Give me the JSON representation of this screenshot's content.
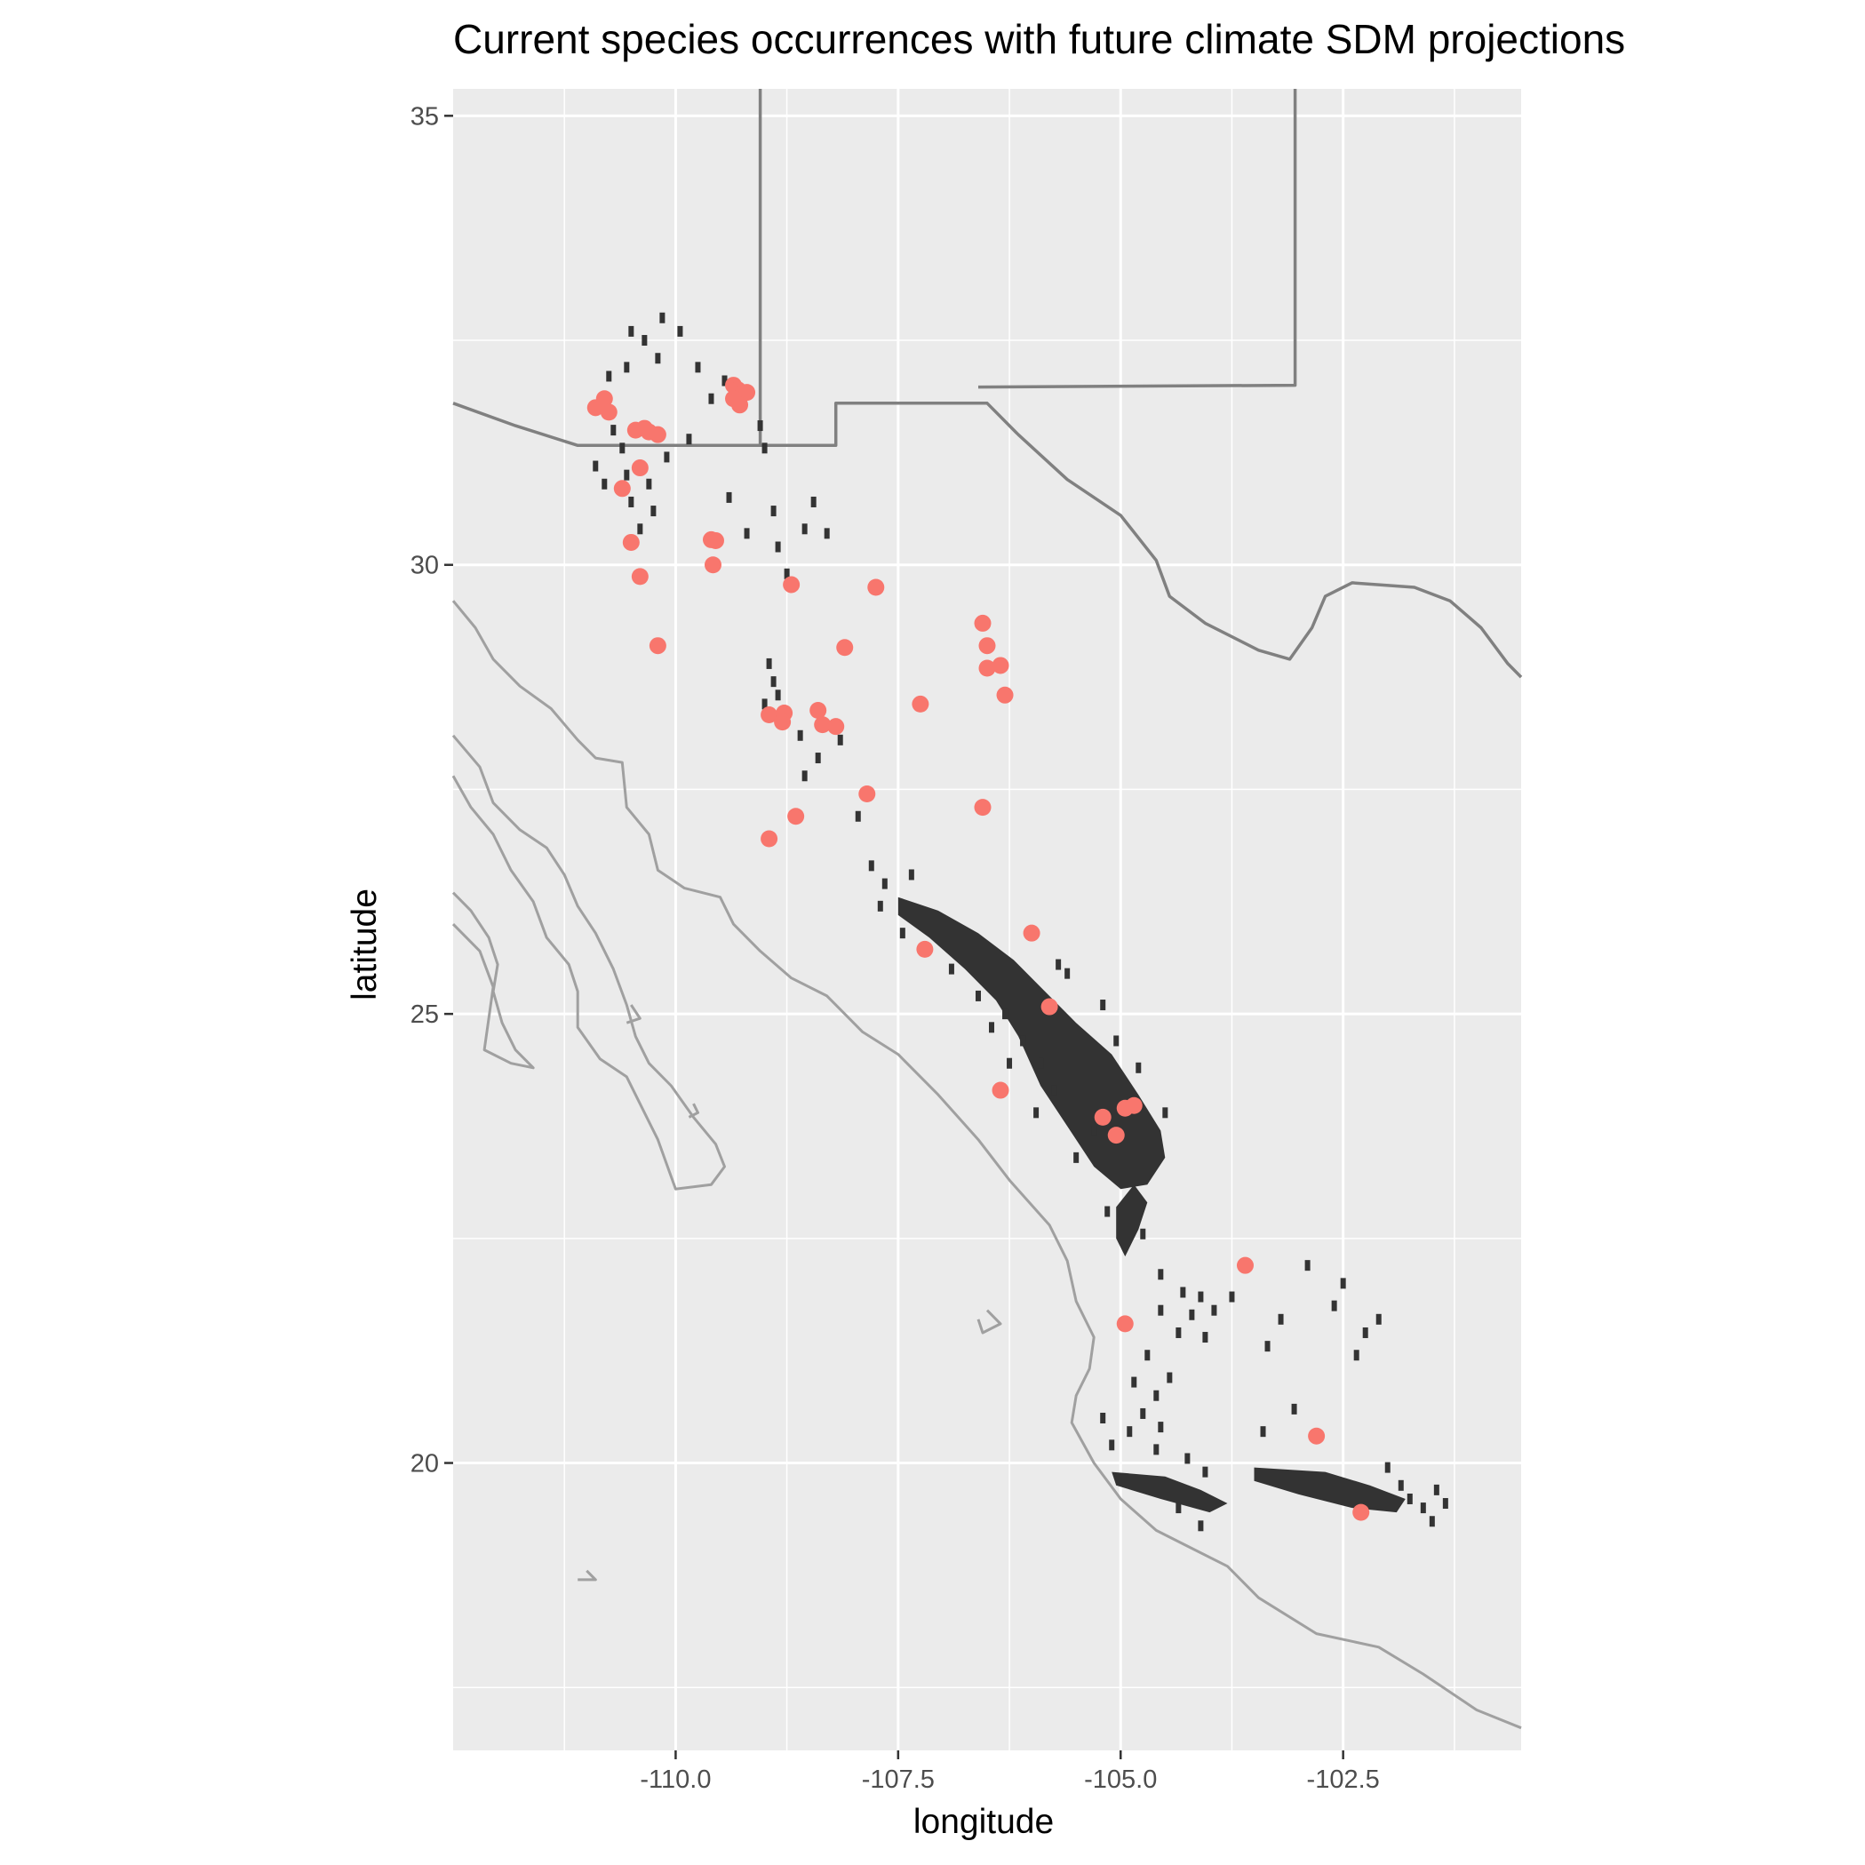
{
  "chart_data": {
    "type": "map",
    "title": "Current species occurrences with future climate SDM projections",
    "xlabel": "longitude",
    "ylabel": "latitude",
    "xlim": [
      -112.5,
      -100.5
    ],
    "ylim": [
      16.8,
      35.3
    ],
    "x_ticks": [
      -110.0,
      -107.5,
      -105.0,
      -102.5
    ],
    "x_tick_labels": [
      "-110.0",
      "-107.5",
      "-105.0",
      "-102.5"
    ],
    "y_ticks": [
      20,
      25,
      30,
      35
    ],
    "y_tick_labels": [
      "20",
      "25",
      "30",
      "35"
    ],
    "grid": true,
    "colors": {
      "panel": "#ebebeb",
      "grid": "#ffffff",
      "points": "#f8766d",
      "projection": "#333333",
      "coastline": "#a0a0a0",
      "border": "#808080"
    },
    "occurrences": [
      [
        -110.9,
        31.75
      ],
      [
        -110.8,
        31.85
      ],
      [
        -110.75,
        31.7
      ],
      [
        -110.45,
        31.5
      ],
      [
        -110.35,
        31.52
      ],
      [
        -110.3,
        31.48
      ],
      [
        -110.2,
        31.45
      ],
      [
        -109.35,
        32.0
      ],
      [
        -109.3,
        31.95
      ],
      [
        -109.25,
        31.9
      ],
      [
        -109.2,
        31.92
      ],
      [
        -109.35,
        31.85
      ],
      [
        -109.28,
        31.78
      ],
      [
        -110.4,
        31.08
      ],
      [
        -110.6,
        30.85
      ],
      [
        -110.5,
        30.25
      ],
      [
        -110.4,
        29.87
      ],
      [
        -109.6,
        30.28
      ],
      [
        -109.55,
        30.27
      ],
      [
        -109.58,
        30.0
      ],
      [
        -110.2,
        29.1
      ],
      [
        -108.7,
        29.78
      ],
      [
        -107.75,
        29.75
      ],
      [
        -108.1,
        29.08
      ],
      [
        -108.95,
        28.33
      ],
      [
        -108.78,
        28.35
      ],
      [
        -108.8,
        28.25
      ],
      [
        -108.4,
        28.38
      ],
      [
        -108.35,
        28.22
      ],
      [
        -108.2,
        28.2
      ],
      [
        -107.25,
        28.45
      ],
      [
        -106.55,
        29.35
      ],
      [
        -106.5,
        29.1
      ],
      [
        -106.5,
        28.85
      ],
      [
        -106.35,
        28.88
      ],
      [
        -106.3,
        28.55
      ],
      [
        -107.85,
        27.45
      ],
      [
        -108.65,
        27.2
      ],
      [
        -108.95,
        26.95
      ],
      [
        -106.55,
        27.3
      ],
      [
        -107.2,
        25.72
      ],
      [
        -106.0,
        25.9
      ],
      [
        -105.8,
        25.08
      ],
      [
        -106.35,
        24.15
      ],
      [
        -105.2,
        23.85
      ],
      [
        -104.95,
        23.95
      ],
      [
        -104.85,
        23.98
      ],
      [
        -105.05,
        23.65
      ],
      [
        -103.6,
        22.2
      ],
      [
        -104.95,
        21.55
      ],
      [
        -102.8,
        20.3
      ],
      [
        -102.3,
        19.45
      ]
    ],
    "projection_blobs": [
      [
        [
          -107.5,
          26.3
        ],
        [
          -107.05,
          26.15
        ],
        [
          -106.6,
          25.9
        ],
        [
          -106.2,
          25.6
        ],
        [
          -105.85,
          25.25
        ],
        [
          -105.5,
          24.9
        ],
        [
          -105.1,
          24.55
        ],
        [
          -104.8,
          24.1
        ],
        [
          -104.55,
          23.7
        ],
        [
          -104.5,
          23.4
        ],
        [
          -104.7,
          23.1
        ],
        [
          -105.0,
          23.05
        ],
        [
          -105.3,
          23.3
        ],
        [
          -105.6,
          23.75
        ],
        [
          -105.9,
          24.2
        ],
        [
          -106.15,
          24.75
        ],
        [
          -106.4,
          25.15
        ],
        [
          -106.75,
          25.5
        ],
        [
          -107.15,
          25.85
        ],
        [
          -107.5,
          26.1
        ]
      ],
      [
        [
          -104.85,
          23.1
        ],
        [
          -104.7,
          22.9
        ],
        [
          -104.8,
          22.6
        ],
        [
          -104.95,
          22.3
        ],
        [
          -105.05,
          22.5
        ],
        [
          -105.05,
          22.85
        ]
      ],
      [
        [
          -105.1,
          19.9
        ],
        [
          -104.5,
          19.85
        ],
        [
          -104.1,
          19.7
        ],
        [
          -103.8,
          19.55
        ],
        [
          -104.0,
          19.45
        ],
        [
          -104.55,
          19.6
        ],
        [
          -105.05,
          19.75
        ]
      ],
      [
        [
          -103.5,
          19.95
        ],
        [
          -102.7,
          19.9
        ],
        [
          -102.2,
          19.75
        ],
        [
          -101.8,
          19.6
        ],
        [
          -101.9,
          19.45
        ],
        [
          -102.4,
          19.5
        ],
        [
          -103.0,
          19.65
        ],
        [
          -103.5,
          19.8
        ]
      ]
    ],
    "projection_specks": [
      [
        -110.7,
        31.5
      ],
      [
        -110.6,
        31.3
      ],
      [
        -110.55,
        31.0
      ],
      [
        -110.5,
        30.7
      ],
      [
        -110.3,
        30.9
      ],
      [
        -110.1,
        31.2
      ],
      [
        -110.9,
        31.1
      ],
      [
        -110.8,
        30.9
      ],
      [
        -110.4,
        30.4
      ],
      [
        -110.25,
        30.6
      ],
      [
        -110.35,
        32.5
      ],
      [
        -110.2,
        32.3
      ],
      [
        -109.95,
        32.6
      ],
      [
        -110.55,
        32.2
      ],
      [
        -110.5,
        32.6
      ],
      [
        -110.15,
        32.75
      ],
      [
        -109.75,
        32.2
      ],
      [
        -109.6,
        31.85
      ],
      [
        -109.45,
        32.05
      ],
      [
        -109.85,
        31.4
      ],
      [
        -110.75,
        32.1
      ],
      [
        -109.05,
        31.55
      ],
      [
        -109.0,
        31.3
      ],
      [
        -108.9,
        30.6
      ],
      [
        -108.85,
        30.2
      ],
      [
        -108.75,
        29.9
      ],
      [
        -108.55,
        30.4
      ],
      [
        -109.2,
        30.35
      ],
      [
        -108.45,
        30.7
      ],
      [
        -109.4,
        30.75
      ],
      [
        -108.3,
        30.35
      ],
      [
        -108.95,
        28.9
      ],
      [
        -108.9,
        28.7
      ],
      [
        -108.85,
        28.55
      ],
      [
        -109.0,
        28.45
      ],
      [
        -108.6,
        28.1
      ],
      [
        -108.4,
        27.85
      ],
      [
        -108.15,
        28.05
      ],
      [
        -107.95,
        27.2
      ],
      [
        -108.55,
        27.65
      ],
      [
        -107.8,
        26.65
      ],
      [
        -107.65,
        26.45
      ],
      [
        -107.7,
        26.2
      ],
      [
        -107.45,
        25.9
      ],
      [
        -107.35,
        26.55
      ],
      [
        -106.9,
        25.5
      ],
      [
        -106.6,
        25.2
      ],
      [
        -106.3,
        25.0
      ],
      [
        -106.1,
        24.7
      ],
      [
        -105.9,
        24.45
      ],
      [
        -105.75,
        24.15
      ],
      [
        -105.7,
        25.55
      ],
      [
        -105.6,
        25.45
      ],
      [
        -105.2,
        25.1
      ],
      [
        -105.05,
        24.7
      ],
      [
        -104.8,
        24.4
      ],
      [
        -106.45,
        24.85
      ],
      [
        -106.25,
        24.45
      ],
      [
        -105.95,
        23.9
      ],
      [
        -105.5,
        23.4
      ],
      [
        -105.3,
        23.7
      ],
      [
        -104.5,
        23.9
      ],
      [
        -105.15,
        22.8
      ],
      [
        -104.75,
        22.55
      ],
      [
        -104.55,
        22.1
      ],
      [
        -104.3,
        21.9
      ],
      [
        -104.2,
        21.65
      ],
      [
        -104.05,
        21.4
      ],
      [
        -104.35,
        21.45
      ],
      [
        -104.1,
        21.85
      ],
      [
        -103.95,
        21.7
      ],
      [
        -104.55,
        21.7
      ],
      [
        -104.7,
        21.2
      ],
      [
        -104.85,
        20.9
      ],
      [
        -104.6,
        20.75
      ],
      [
        -104.45,
        20.95
      ],
      [
        -104.75,
        20.55
      ],
      [
        -104.55,
        20.4
      ],
      [
        -105.2,
        20.5
      ],
      [
        -105.1,
        20.2
      ],
      [
        -104.9,
        20.35
      ],
      [
        -104.6,
        20.15
      ],
      [
        -104.25,
        20.05
      ],
      [
        -104.05,
        19.9
      ],
      [
        -104.35,
        19.5
      ],
      [
        -104.1,
        19.3
      ],
      [
        -103.4,
        20.35
      ],
      [
        -103.05,
        20.6
      ],
      [
        -103.75,
        21.85
      ],
      [
        -103.35,
        21.3
      ],
      [
        -103.2,
        21.6
      ],
      [
        -102.6,
        21.75
      ],
      [
        -102.5,
        22.0
      ],
      [
        -102.9,
        22.2
      ],
      [
        -102.25,
        21.45
      ],
      [
        -102.1,
        21.6
      ],
      [
        -102.35,
        21.2
      ],
      [
        -102.0,
        19.95
      ],
      [
        -101.85,
        19.75
      ],
      [
        -101.6,
        19.5
      ],
      [
        -101.45,
        19.7
      ],
      [
        -101.5,
        19.35
      ],
      [
        -101.75,
        19.6
      ],
      [
        -101.35,
        19.55
      ]
    ],
    "coastlines": [
      [
        [
          -112.5,
          29.6
        ],
        [
          -112.25,
          29.3
        ],
        [
          -112.05,
          28.95
        ],
        [
          -111.75,
          28.65
        ],
        [
          -111.4,
          28.4
        ],
        [
          -111.1,
          28.05
        ],
        [
          -110.9,
          27.85
        ],
        [
          -110.6,
          27.8
        ],
        [
          -110.55,
          27.3
        ],
        [
          -110.3,
          27.0
        ],
        [
          -110.2,
          26.6
        ],
        [
          -109.9,
          26.4
        ],
        [
          -109.5,
          26.3
        ],
        [
          -109.35,
          26.0
        ],
        [
          -109.05,
          25.7
        ],
        [
          -108.7,
          25.4
        ],
        [
          -108.3,
          25.2
        ],
        [
          -107.9,
          24.8
        ],
        [
          -107.5,
          24.55
        ],
        [
          -107.05,
          24.1
        ],
        [
          -106.6,
          23.6
        ],
        [
          -106.25,
          23.15
        ],
        [
          -105.8,
          22.65
        ],
        [
          -105.6,
          22.25
        ],
        [
          -105.5,
          21.8
        ],
        [
          -105.3,
          21.4
        ],
        [
          -105.35,
          21.05
        ],
        [
          -105.5,
          20.75
        ],
        [
          -105.55,
          20.45
        ],
        [
          -105.3,
          20.0
        ],
        [
          -105.0,
          19.6
        ],
        [
          -104.6,
          19.25
        ],
        [
          -104.2,
          19.05
        ],
        [
          -103.8,
          18.85
        ],
        [
          -103.45,
          18.5
        ],
        [
          -102.8,
          18.1
        ],
        [
          -102.1,
          17.95
        ],
        [
          -101.6,
          17.65
        ],
        [
          -101.0,
          17.25
        ],
        [
          -100.5,
          17.05
        ]
      ],
      [
        [
          -112.5,
          27.65
        ],
        [
          -112.3,
          27.3
        ],
        [
          -112.05,
          27.0
        ],
        [
          -111.85,
          26.6
        ],
        [
          -111.6,
          26.25
        ],
        [
          -111.45,
          25.85
        ],
        [
          -111.2,
          25.55
        ],
        [
          -111.1,
          25.25
        ],
        [
          -111.1,
          24.85
        ],
        [
          -110.85,
          24.5
        ],
        [
          -110.55,
          24.3
        ],
        [
          -110.4,
          24.0
        ],
        [
          -110.2,
          23.6
        ],
        [
          -110.0,
          23.05
        ],
        [
          -109.6,
          23.1
        ],
        [
          -109.45,
          23.3
        ],
        [
          -109.55,
          23.55
        ],
        [
          -109.8,
          23.85
        ],
        [
          -110.05,
          24.2
        ],
        [
          -110.3,
          24.45
        ],
        [
          -110.45,
          24.75
        ],
        [
          -110.55,
          25.1
        ],
        [
          -110.7,
          25.5
        ],
        [
          -110.9,
          25.9
        ],
        [
          -111.1,
          26.2
        ],
        [
          -111.25,
          26.55
        ],
        [
          -111.45,
          26.85
        ],
        [
          -111.75,
          27.05
        ],
        [
          -112.05,
          27.35
        ],
        [
          -112.2,
          27.75
        ],
        [
          -112.5,
          28.1
        ]
      ],
      [
        [
          -112.5,
          26.0
        ],
        [
          -112.2,
          25.7
        ],
        [
          -112.05,
          25.3
        ],
        [
          -112.1,
          24.95
        ],
        [
          -112.15,
          24.6
        ],
        [
          -111.85,
          24.45
        ],
        [
          -111.6,
          24.4
        ],
        [
          -111.8,
          24.6
        ],
        [
          -111.95,
          24.9
        ],
        [
          -112.05,
          25.25
        ],
        [
          -112.0,
          25.55
        ],
        [
          -112.1,
          25.85
        ],
        [
          -112.3,
          26.15
        ],
        [
          -112.5,
          26.35
        ]
      ],
      [
        [
          -106.5,
          21.7
        ],
        [
          -106.35,
          21.55
        ],
        [
          -106.55,
          21.45
        ],
        [
          -106.6,
          21.6
        ]
      ],
      [
        [
          -111.0,
          18.8
        ],
        [
          -110.9,
          18.7
        ],
        [
          -111.1,
          18.7
        ]
      ],
      [
        [
          -109.8,
          24.0
        ],
        [
          -109.75,
          23.9
        ],
        [
          -109.85,
          23.85
        ]
      ],
      [
        [
          -110.5,
          25.1
        ],
        [
          -110.4,
          24.95
        ],
        [
          -110.55,
          24.9
        ]
      ]
    ],
    "borders": [
      [
        [
          -112.5,
          31.8
        ],
        [
          -111.8,
          31.55
        ],
        [
          -111.1,
          31.33
        ],
        [
          -108.2,
          31.33
        ],
        [
          -108.2,
          31.8
        ],
        [
          -106.5,
          31.8
        ],
        [
          -106.15,
          31.45
        ],
        [
          -105.6,
          30.95
        ],
        [
          -105.0,
          30.55
        ],
        [
          -104.6,
          30.05
        ],
        [
          -104.45,
          29.65
        ],
        [
          -104.05,
          29.35
        ],
        [
          -103.45,
          29.05
        ],
        [
          -103.1,
          28.95
        ],
        [
          -102.85,
          29.3
        ],
        [
          -102.7,
          29.65
        ],
        [
          -102.4,
          29.8
        ],
        [
          -101.7,
          29.75
        ],
        [
          -101.3,
          29.6
        ],
        [
          -100.95,
          29.3
        ],
        [
          -100.65,
          28.9
        ],
        [
          -100.5,
          28.75
        ]
      ],
      [
        [
          -109.05,
          35.3
        ],
        [
          -109.05,
          31.33
        ]
      ],
      [
        [
          -103.04,
          35.3
        ],
        [
          -103.04,
          32.0
        ],
        [
          -106.6,
          31.98
        ]
      ]
    ]
  }
}
